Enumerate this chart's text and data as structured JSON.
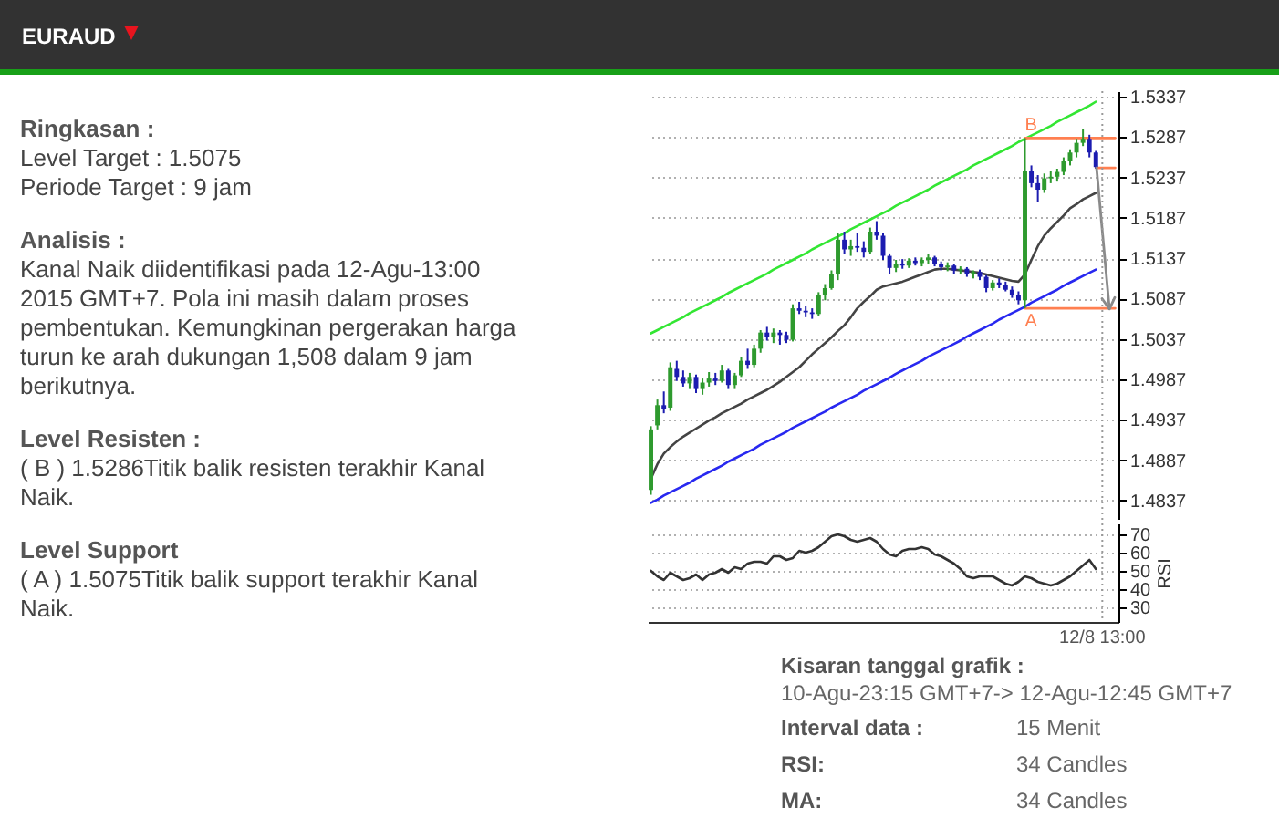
{
  "chart_data": [
    {
      "type": "other",
      "title": "EURAUD",
      "annotations": [
        "Ringkasan :",
        "Level Target : 1.5075",
        "Periode Target : 9 jam",
        "Analisis :",
        "Kanal Naik diidentifikasi pada 12-Agu-13:00 2015 GMT+7. Pola ini masih dalam proses pembentukan. Kemungkinan pergerakan harga turun ke arah dukungan 1,508 dalam 9 jam berikutnya.",
        "Level Resisten :",
        "( B ) 1.5286Titik balik resisten terakhir Kanal Naik.",
        "Level Support",
        "( A ) 1.5075Titik balik support terakhir Kanal Naik."
      ]
    },
    {
      "type": "candlestick",
      "categories": [
        null,
        null,
        null,
        null,
        null,
        null,
        null,
        null,
        null,
        null,
        null,
        null,
        null,
        null,
        null,
        null,
        null,
        null,
        null,
        null,
        null,
        null,
        null,
        null,
        null,
        null,
        null,
        null,
        null,
        null,
        null,
        null,
        null,
        null,
        null,
        null,
        null,
        null,
        null,
        null,
        null,
        null,
        null,
        null,
        null,
        null,
        null,
        null,
        null,
        null,
        null,
        null,
        null,
        null,
        null,
        null,
        null,
        null,
        null,
        null,
        null,
        null,
        null,
        null,
        null,
        null,
        null,
        null,
        null,
        null,
        null,
        null,
        null
      ],
      "ohlc": [
        [
          1.485,
          1.4929,
          1.4844,
          1.4925
        ],
        [
          1.493,
          1.4962,
          1.4925,
          1.4955
        ],
        [
          1.4955,
          1.4972,
          1.4945,
          1.495
        ],
        [
          1.4952,
          1.5008,
          1.4948,
          1.5002
        ],
        [
          1.5,
          1.501,
          1.4985,
          1.499
        ],
        [
          1.499,
          1.4998,
          1.4978,
          1.4982
        ],
        [
          1.4982,
          1.4995,
          1.4975,
          1.499
        ],
        [
          1.499,
          1.4993,
          1.497,
          1.4975
        ],
        [
          1.4975,
          1.4988,
          1.4968,
          1.4983
        ],
        [
          1.4983,
          1.4996,
          1.4978,
          1.4988
        ],
        [
          1.4988,
          1.4995,
          1.498,
          1.4985
        ],
        [
          1.4985,
          1.5005,
          1.4983,
          1.4998
        ],
        [
          1.4998,
          1.5,
          1.4975,
          1.498
        ],
        [
          1.498,
          1.4995,
          1.4975,
          1.4992
        ],
        [
          1.4992,
          1.5015,
          1.499,
          1.501
        ],
        [
          1.501,
          1.5025,
          1.5,
          1.5005
        ],
        [
          1.5005,
          1.503,
          1.5002,
          1.5025
        ],
        [
          1.5025,
          1.5048,
          1.502,
          1.5045
        ],
        [
          1.5045,
          1.5052,
          1.5035,
          1.504
        ],
        [
          1.504,
          1.505,
          1.5032,
          1.5045
        ],
        [
          1.5045,
          1.5048,
          1.503,
          1.5042
        ],
        [
          1.5042,
          1.5046,
          1.5032,
          1.5036
        ],
        [
          1.5036,
          1.508,
          1.5034,
          1.5075
        ],
        [
          1.5075,
          1.5083,
          1.5068,
          1.5072
        ],
        [
          1.5072,
          1.5078,
          1.5064,
          1.507
        ],
        [
          1.507,
          1.5075,
          1.5062,
          1.5068
        ],
        [
          1.5068,
          1.5095,
          1.5066,
          1.5092
        ],
        [
          1.5092,
          1.5105,
          1.5085,
          1.51
        ],
        [
          1.51,
          1.5122,
          1.5098,
          1.5118
        ],
        [
          1.5118,
          1.5168,
          1.511,
          1.516
        ],
        [
          1.516,
          1.517,
          1.5142,
          1.5148
        ],
        [
          1.5148,
          1.516,
          1.514,
          1.5152
        ],
        [
          1.5152,
          1.5168,
          1.5145,
          1.515
        ],
        [
          1.515,
          1.5158,
          1.5138,
          1.5145
        ],
        [
          1.5145,
          1.5175,
          1.5142,
          1.517
        ],
        [
          1.517,
          1.5183,
          1.516,
          1.5165
        ],
        [
          1.5165,
          1.5168,
          1.5135,
          1.514
        ],
        [
          1.514,
          1.5143,
          1.5118,
          1.5125
        ],
        [
          1.5125,
          1.5135,
          1.512,
          1.513
        ],
        [
          1.513,
          1.5136,
          1.5124,
          1.5128
        ],
        [
          1.5128,
          1.5137,
          1.5125,
          1.5134
        ],
        [
          1.5134,
          1.5138,
          1.5128,
          1.5131
        ],
        [
          1.5131,
          1.5138,
          1.5127,
          1.5135
        ],
        [
          1.5135,
          1.5142,
          1.513,
          1.5138
        ],
        [
          1.5138,
          1.514,
          1.5127,
          1.513
        ],
        [
          1.513,
          1.5133,
          1.5122,
          1.5126
        ],
        [
          1.5126,
          1.5132,
          1.5121,
          1.5128
        ],
        [
          1.5128,
          1.513,
          1.5118,
          1.5122
        ],
        [
          1.5122,
          1.5127,
          1.5117,
          1.5124
        ],
        [
          1.5124,
          1.5126,
          1.5114,
          1.5118
        ],
        [
          1.5118,
          1.5122,
          1.5112,
          1.512
        ],
        [
          1.512,
          1.5123,
          1.511,
          1.5114
        ],
        [
          1.5114,
          1.5116,
          1.5095,
          1.51
        ],
        [
          1.51,
          1.511,
          1.5097,
          1.5107
        ],
        [
          1.5107,
          1.5112,
          1.51,
          1.5104
        ],
        [
          1.5104,
          1.5108,
          1.5096,
          1.5098
        ],
        [
          1.5098,
          1.5102,
          1.5088,
          1.5092
        ],
        [
          1.5092,
          1.5096,
          1.508,
          1.5085
        ],
        [
          1.5085,
          1.5286,
          1.5075,
          1.5245
        ],
        [
          1.5245,
          1.5252,
          1.5225,
          1.523
        ],
        [
          1.523,
          1.524,
          1.5207,
          1.5222
        ],
        [
          1.5222,
          1.5242,
          1.5218,
          1.5236
        ],
        [
          1.5236,
          1.5245,
          1.523,
          1.5238
        ],
        [
          1.5238,
          1.5248,
          1.5232,
          1.5244
        ],
        [
          1.5244,
          1.5262,
          1.524,
          1.5258
        ],
        [
          1.5258,
          1.5272,
          1.5252,
          1.5268
        ],
        [
          1.5268,
          1.5285,
          1.5262,
          1.528
        ],
        [
          1.528,
          1.5297,
          1.5276,
          1.5285
        ],
        [
          1.5285,
          1.529,
          1.5262,
          1.5268
        ],
        [
          1.5268,
          1.527,
          1.5248,
          1.525
        ],
        null,
        null,
        null
      ],
      "colors": [
        "#2e9a2e",
        "#2e9a2e",
        "#1c1cb0",
        "#2e9a2e",
        "#1c1cb0",
        "#1c1cb0",
        "#2e9a2e",
        "#1c1cb0",
        "#2e9a2e",
        "#2e9a2e",
        "#1c1cb0",
        "#2e9a2e",
        "#1c1cb0",
        "#2e9a2e",
        "#2e9a2e",
        "#1c1cb0",
        "#2e9a2e",
        "#2e9a2e",
        "#1c1cb0",
        "#2e9a2e",
        "#1c1cb0",
        "#1c1cb0",
        "#2e9a2e",
        "#1c1cb0",
        "#1c1cb0",
        "#1c1cb0",
        "#2e9a2e",
        "#2e9a2e",
        "#2e9a2e",
        "#2e9a2e",
        "#1c1cb0",
        "#2e9a2e",
        "#1c1cb0",
        "#1c1cb0",
        "#2e9a2e",
        "#1c1cb0",
        "#1c1cb0",
        "#1c1cb0",
        "#2e9a2e",
        "#1c1cb0",
        "#2e9a2e",
        "#1c1cb0",
        "#2e9a2e",
        "#2e9a2e",
        "#1c1cb0",
        "#1c1cb0",
        "#2e9a2e",
        "#1c1cb0",
        "#2e9a2e",
        "#1c1cb0",
        "#2e9a2e",
        "#1c1cb0",
        "#1c1cb0",
        "#2e9a2e",
        "#1c1cb0",
        "#1c1cb0",
        "#1c1cb0",
        "#1c1cb0",
        "#2e9a2e",
        "#1c1cb0",
        "#1c1cb0",
        "#2e9a2e",
        "#2e9a2e",
        "#2e9a2e",
        "#2e9a2e",
        "#2e9a2e",
        "#2e9a2e",
        "#2e9a2e",
        "#1c1cb0",
        "#1c1cb0",
        null,
        null,
        null
      ],
      "series": [
        {
          "type": "line",
          "color": "#33e633",
          "values": [
            1.5044,
            1.5048,
            1.5052,
            1.5056,
            1.506,
            1.5064,
            1.5069,
            1.5073,
            1.5077,
            1.5081,
            1.5085,
            1.5089,
            1.5094,
            1.5098,
            1.5102,
            1.5106,
            1.511,
            1.5114,
            1.5118,
            1.5123,
            1.5127,
            1.5131,
            1.5135,
            1.5139,
            1.5143,
            1.5148,
            1.5152,
            1.5156,
            1.516,
            1.5164,
            1.5168,
            1.5173,
            1.5177,
            1.5181,
            1.5185,
            1.5189,
            1.5193,
            1.5197,
            1.5202,
            1.5206,
            1.521,
            1.5214,
            1.5218,
            1.5222,
            1.5227,
            1.5231,
            1.5235,
            1.5239,
            1.5243,
            1.5247,
            1.5252,
            1.5256,
            1.526,
            1.5264,
            1.5268,
            1.5272,
            1.5276,
            1.5281,
            1.5285,
            1.5289,
            1.5293,
            1.5297,
            1.5301,
            1.5306,
            1.531,
            1.5314,
            1.5318,
            1.5322,
            1.5326,
            1.5331,
            null,
            null,
            null
          ]
        },
        {
          "type": "line",
          "color": "#2828f0",
          "values": [
            1.4834,
            1.4838,
            1.4843,
            1.4847,
            1.4851,
            1.4855,
            1.4859,
            1.4864,
            1.4868,
            1.4872,
            1.4876,
            1.488,
            1.4885,
            1.4889,
            1.4893,
            1.4897,
            1.4901,
            1.4906,
            1.491,
            1.4914,
            1.4918,
            1.4922,
            1.4927,
            1.4931,
            1.4935,
            1.4939,
            1.4943,
            1.4947,
            1.4952,
            1.4956,
            1.496,
            1.4964,
            1.4968,
            1.4973,
            1.4977,
            1.4981,
            1.4985,
            1.4989,
            1.4994,
            1.4998,
            1.5002,
            1.5006,
            1.501,
            1.5015,
            1.5019,
            1.5023,
            1.5027,
            1.5031,
            1.5035,
            1.504,
            1.5044,
            1.5048,
            1.5052,
            1.5056,
            1.5061,
            1.5065,
            1.5069,
            1.5073,
            1.5077,
            1.5082,
            1.5086,
            1.509,
            1.5094,
            1.5098,
            1.5103,
            1.5107,
            1.5111,
            1.5115,
            1.5119,
            1.5123,
            null,
            null,
            null
          ]
        },
        {
          "type": "line",
          "color": "#444444",
          "values": [
            1.4864,
            1.4882,
            1.4895,
            1.4903,
            1.491,
            1.4916,
            1.4921,
            1.4926,
            1.4931,
            1.4936,
            1.494,
            1.4945,
            1.4949,
            1.4953,
            1.4957,
            1.4962,
            1.4966,
            1.497,
            1.4974,
            1.4979,
            1.4984,
            1.499,
            1.4996,
            1.5002,
            1.501,
            1.5018,
            1.5025,
            1.5032,
            1.5039,
            1.5047,
            1.5054,
            1.5064,
            1.5075,
            1.5083,
            1.509,
            1.5098,
            1.5102,
            1.5104,
            1.5106,
            1.5108,
            1.5111,
            1.5114,
            1.5117,
            1.512,
            1.5123,
            1.5124,
            1.5124,
            1.5123,
            1.5122,
            1.5121,
            1.512,
            1.5119,
            1.5117,
            1.5115,
            1.5113,
            1.5111,
            1.5109,
            1.5108,
            1.5117,
            1.5135,
            1.5152,
            1.5165,
            1.5174,
            1.5182,
            1.519,
            1.5199,
            1.5204,
            1.521,
            1.5214,
            1.5218,
            null,
            null,
            null
          ]
        },
        {
          "type": "line",
          "name": "B",
          "color": "#ff7f50",
          "values": [
            null,
            null,
            null,
            null,
            null,
            null,
            null,
            null,
            null,
            null,
            null,
            null,
            null,
            null,
            null,
            null,
            null,
            null,
            null,
            null,
            null,
            null,
            null,
            null,
            null,
            null,
            null,
            null,
            null,
            null,
            null,
            null,
            null,
            null,
            null,
            null,
            null,
            null,
            null,
            null,
            null,
            null,
            null,
            null,
            null,
            null,
            null,
            null,
            null,
            null,
            null,
            null,
            null,
            null,
            null,
            null,
            null,
            null,
            1.5286,
            1.5286,
            1.5286,
            1.5286,
            1.5286,
            1.5286,
            1.5286,
            1.5286,
            1.5286,
            1.5286,
            1.5286,
            1.5286,
            1.5286,
            1.5286,
            1.5286
          ]
        },
        {
          "type": "line",
          "name": "A",
          "color": "#ff7f50",
          "values": [
            null,
            null,
            null,
            null,
            null,
            null,
            null,
            null,
            null,
            null,
            null,
            null,
            null,
            null,
            null,
            null,
            null,
            null,
            null,
            null,
            null,
            null,
            null,
            null,
            null,
            null,
            null,
            null,
            null,
            null,
            null,
            null,
            null,
            null,
            null,
            null,
            null,
            null,
            null,
            null,
            null,
            null,
            null,
            null,
            null,
            null,
            null,
            null,
            null,
            null,
            null,
            null,
            null,
            null,
            null,
            null,
            null,
            null,
            1.5075,
            1.5075,
            1.5075,
            1.5075,
            1.5075,
            1.5075,
            1.5075,
            1.5075,
            1.5075,
            1.5075,
            1.5075,
            1.5075,
            1.5075,
            1.5075,
            1.5075
          ]
        },
        {
          "type": "line",
          "color": "#ff7f50",
          "values": [
            null,
            null,
            null,
            null,
            null,
            null,
            null,
            null,
            null,
            null,
            null,
            null,
            null,
            null,
            null,
            null,
            null,
            null,
            null,
            null,
            null,
            null,
            null,
            null,
            null,
            null,
            null,
            null,
            null,
            null,
            null,
            null,
            null,
            null,
            null,
            null,
            null,
            null,
            null,
            null,
            null,
            null,
            null,
            null,
            null,
            null,
            null,
            null,
            null,
            null,
            null,
            null,
            null,
            null,
            null,
            null,
            null,
            null,
            null,
            null,
            null,
            null,
            null,
            null,
            null,
            null,
            null,
            null,
            null,
            1.5249,
            1.5249,
            1.5249,
            1.5249
          ]
        }
      ],
      "ylim": [
        1.4813,
        1.5344
      ],
      "yticks": [
        1.4837,
        1.4887,
        1.4937,
        1.4987,
        1.5037,
        1.5087,
        1.5137,
        1.5187,
        1.5237,
        1.5287,
        1.5337
      ],
      "grid": true,
      "tick_labels": "y"
    },
    {
      "type": "line",
      "categories": [
        null,
        null,
        null,
        null,
        null,
        null,
        null,
        null,
        null,
        null,
        null,
        null,
        null,
        null,
        null,
        null,
        null,
        null,
        null,
        null,
        null,
        null,
        null,
        null,
        null,
        null,
        null,
        null,
        null,
        null,
        null,
        null,
        null,
        null,
        null,
        null,
        null,
        null,
        null,
        null,
        null,
        null,
        null,
        null,
        null,
        null,
        null,
        null,
        null,
        null,
        null,
        null,
        null,
        null,
        null,
        null,
        null,
        null,
        null,
        null,
        null,
        null,
        null,
        null,
        null,
        null,
        null,
        null,
        null,
        null,
        "12/8 13:00",
        null,
        null
      ],
      "values": [
        50,
        47,
        45,
        49,
        47,
        45,
        46,
        48,
        45,
        48,
        49,
        51,
        49,
        52,
        51,
        54,
        55,
        55,
        54,
        58,
        58,
        56,
        57,
        61,
        60,
        61,
        63,
        66,
        69,
        70,
        69,
        67,
        66,
        67,
        68,
        66,
        62,
        59,
        58,
        61,
        62,
        62,
        63,
        62,
        59,
        58,
        56,
        54,
        51,
        47,
        46,
        47,
        47,
        47,
        45,
        43,
        42,
        44,
        47,
        46,
        44,
        43,
        42,
        43,
        45,
        47,
        50,
        53,
        56,
        51,
        null,
        null,
        null
      ],
      "color": "#333333",
      "ylim": [
        22,
        76
      ],
      "yticks": [
        30,
        40,
        50,
        60,
        70
      ],
      "ylabel": "RSI",
      "grid": true,
      "ref_lines": [
        {
          "axis": "x",
          "value": "12/8 13:00",
          "line_style": "dotted",
          "color": "#999999"
        }
      ]
    },
    {
      "type": "other",
      "annotations": [
        "Kisaran tanggal grafik :",
        "10-Agu-23:15 GMT+7-> 12-Agu-12:45 GMT+7",
        "Interval data :",
        "15 Menit",
        "RSI:",
        "34 Candles",
        "MA:",
        "34 Candles"
      ]
    }
  ]
}
